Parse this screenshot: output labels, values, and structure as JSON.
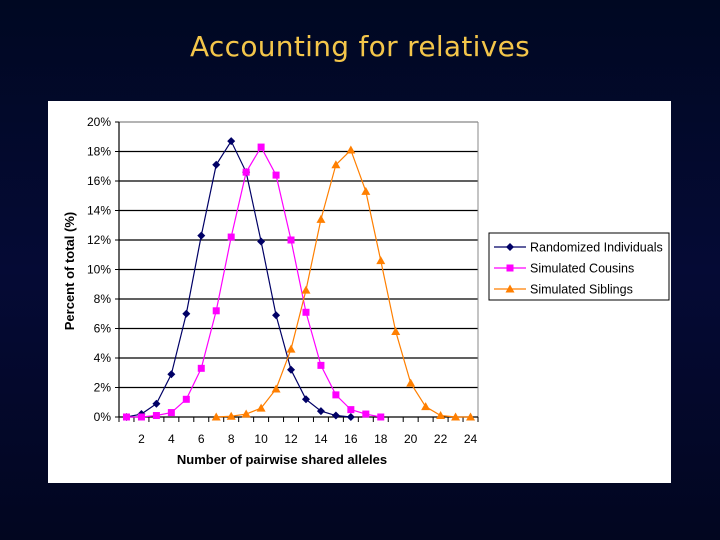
{
  "slide": {
    "title": "Accounting for relatives",
    "background_color": "#03092b",
    "title_color": "#f4c64a"
  },
  "chart_data": {
    "type": "line",
    "title": "",
    "xlabel": "Number of pairwise shared alleles",
    "ylabel": "Percent of total (%)",
    "x": [
      1,
      2,
      3,
      4,
      5,
      6,
      7,
      8,
      9,
      10,
      11,
      12,
      13,
      14,
      15,
      16,
      17,
      18,
      19,
      20,
      21,
      22,
      23,
      24
    ],
    "x_tick_labels": [
      "2",
      "4",
      "6",
      "8",
      "10",
      "12",
      "14",
      "16",
      "18",
      "20",
      "22",
      "24"
    ],
    "y_tick_labels": [
      "0%",
      "2%",
      "4%",
      "6%",
      "8%",
      "10%",
      "12%",
      "14%",
      "16%",
      "18%",
      "20%"
    ],
    "ylim": [
      0,
      20
    ],
    "xlim": [
      0.5,
      24.5
    ],
    "grid": "horizontal",
    "legend_position": "right",
    "series": [
      {
        "name": "Randomized Individuals",
        "color": "#000066",
        "marker": "diamond",
        "x": [
          1,
          2,
          3,
          4,
          5,
          6,
          7,
          8,
          9,
          10,
          11,
          12,
          13,
          14,
          15,
          16
        ],
        "values": [
          0.0,
          0.2,
          0.9,
          2.9,
          7.0,
          12.3,
          17.1,
          18.7,
          16.6,
          11.9,
          6.9,
          3.2,
          1.2,
          0.4,
          0.1,
          0.0
        ]
      },
      {
        "name": "Simulated Cousins",
        "color": "#ff00ff",
        "marker": "square",
        "x": [
          1,
          2,
          3,
          4,
          5,
          6,
          7,
          8,
          9,
          10,
          11,
          12,
          13,
          14,
          15,
          16,
          17,
          18
        ],
        "values": [
          0.0,
          0.0,
          0.1,
          0.3,
          1.2,
          3.3,
          7.2,
          12.2,
          16.6,
          18.3,
          16.4,
          12.0,
          7.1,
          3.5,
          1.5,
          0.5,
          0.2,
          0.0
        ]
      },
      {
        "name": "Simulated Siblings",
        "color": "#ff7f00",
        "marker": "triangle",
        "x": [
          7,
          8,
          9,
          10,
          11,
          12,
          13,
          14,
          15,
          16,
          17,
          18,
          19,
          20,
          21,
          22,
          23,
          24
        ],
        "values": [
          0.0,
          0.05,
          0.2,
          0.6,
          1.9,
          4.6,
          8.6,
          13.4,
          17.1,
          18.1,
          15.3,
          10.6,
          5.8,
          2.3,
          0.7,
          0.1,
          0.0,
          0.0
        ]
      }
    ]
  }
}
